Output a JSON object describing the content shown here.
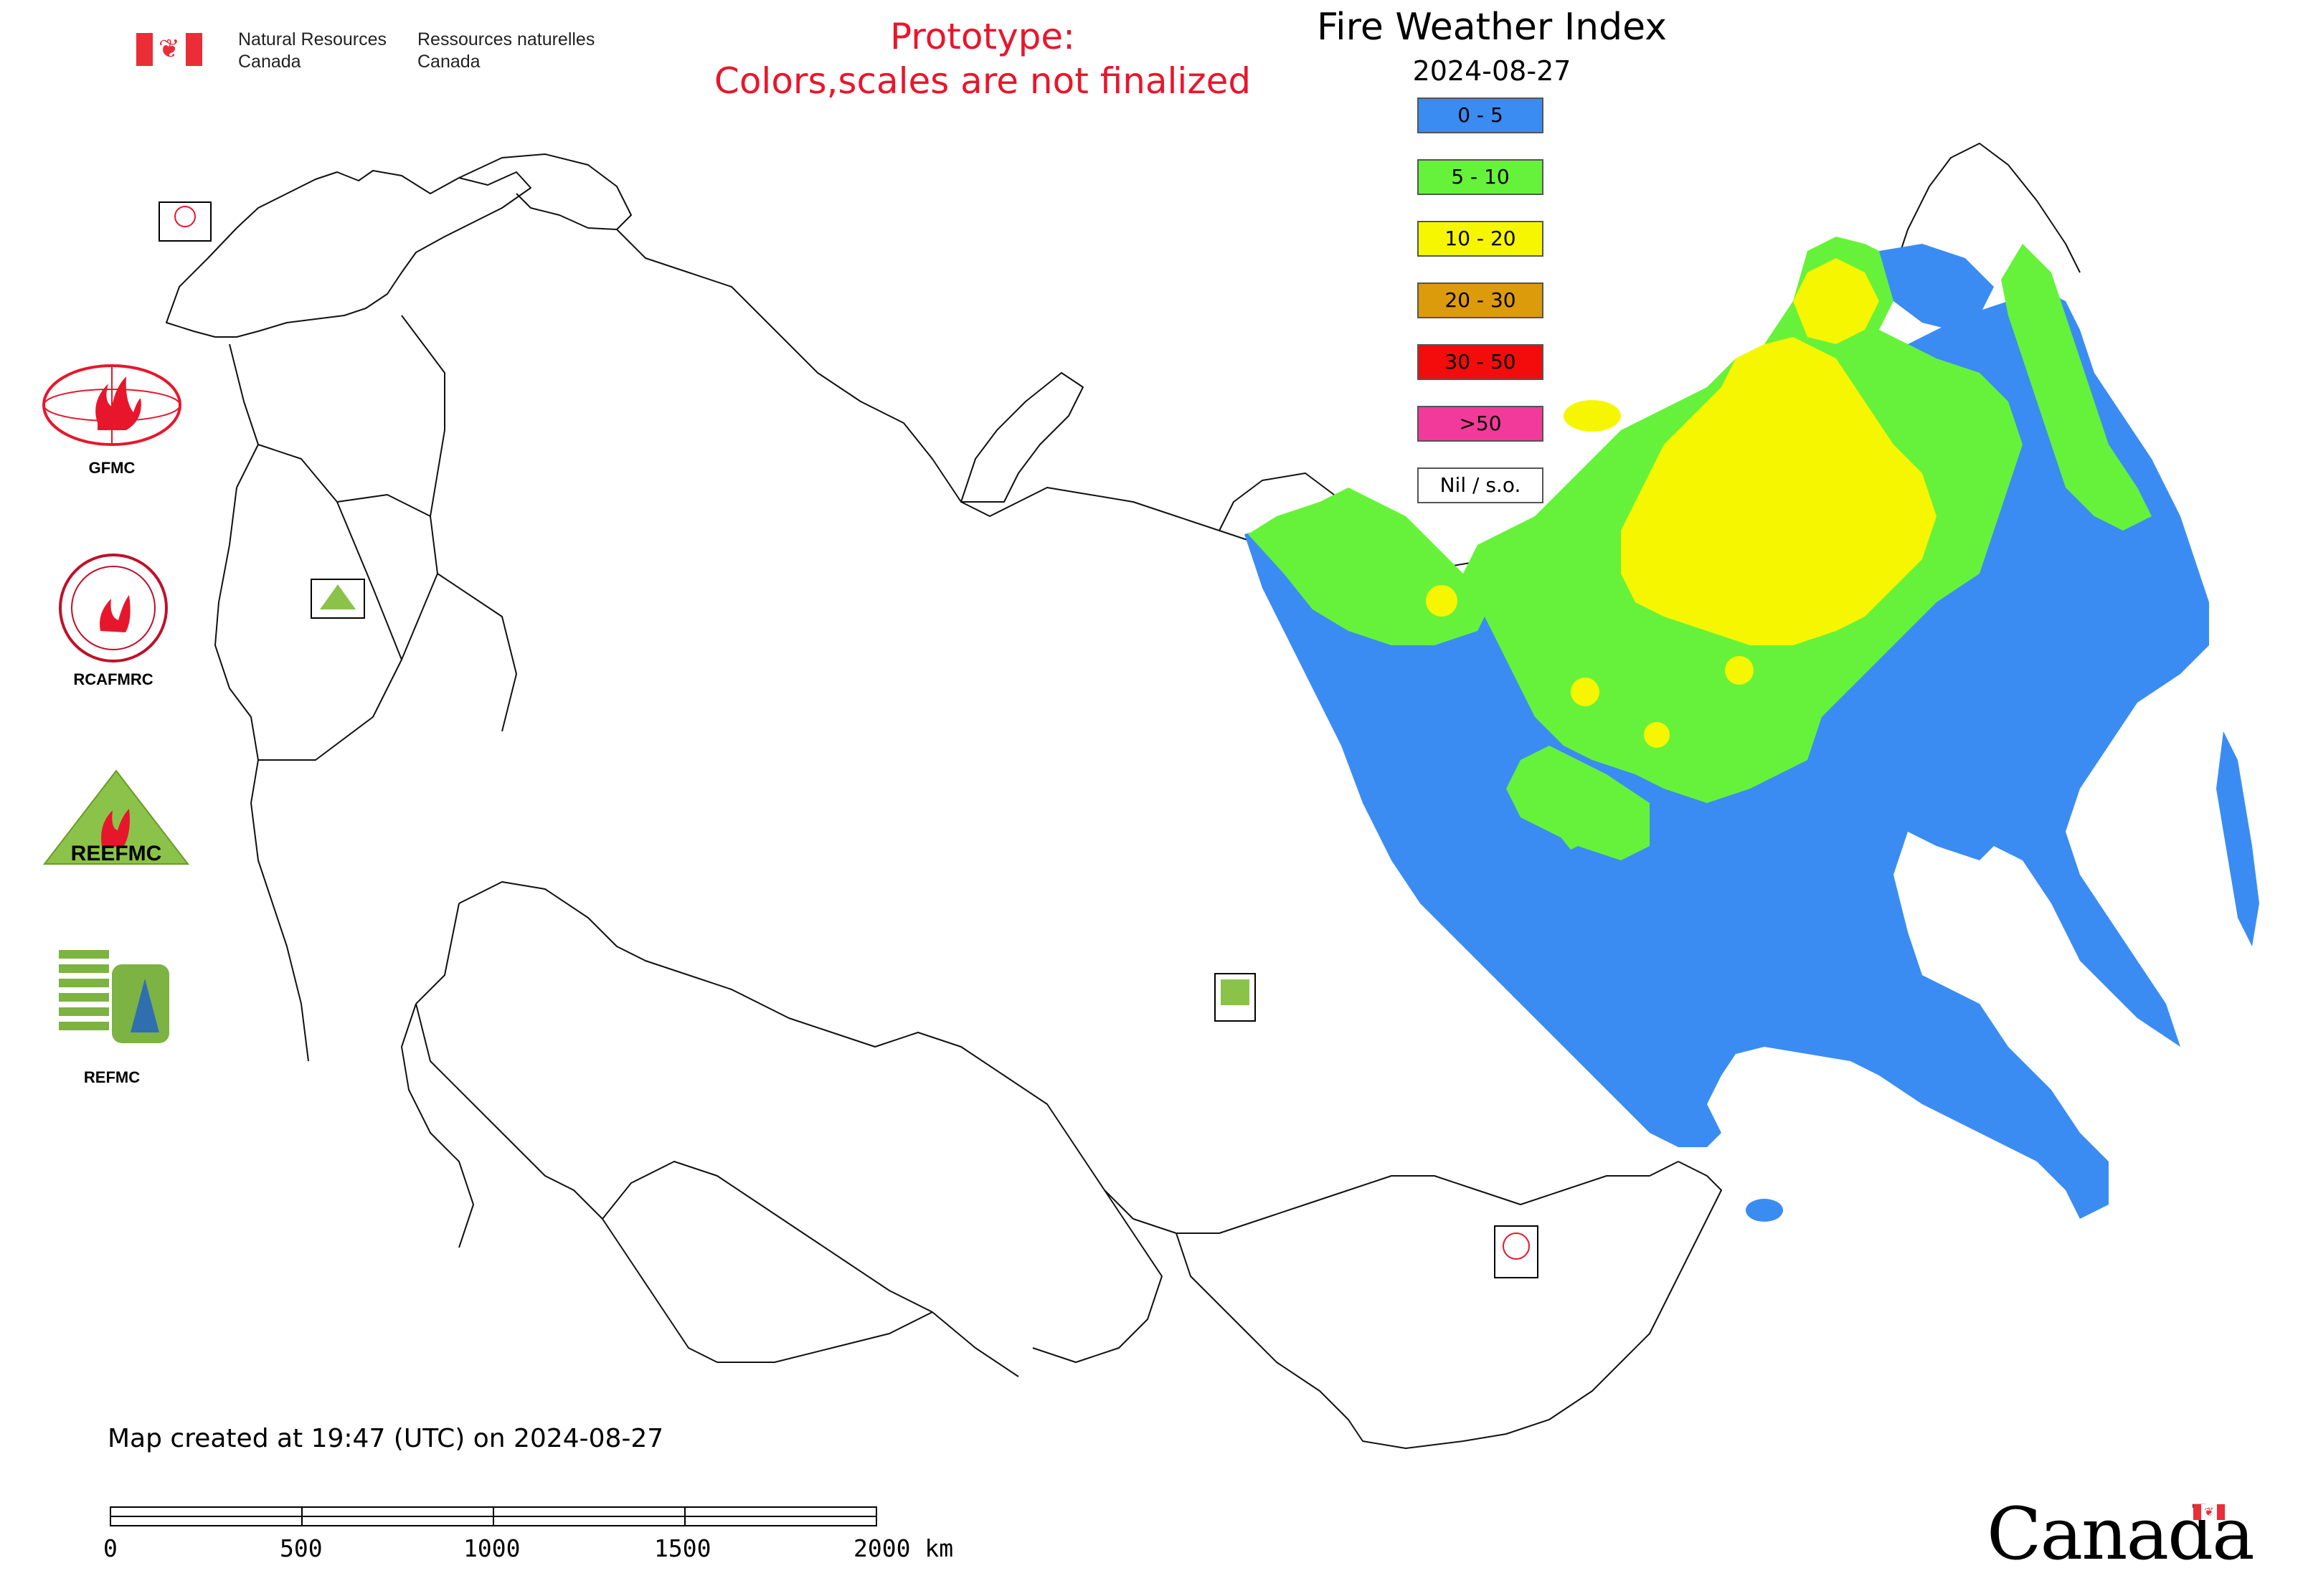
{
  "header": {
    "agency_en_line1": "Natural Resources",
    "agency_en_line2": "Canada",
    "agency_fr_line1": "Ressources naturelles",
    "agency_fr_line2": "Canada",
    "prototype_line1": "Prototype:",
    "prototype_line2": "Colors,scales are not finalized"
  },
  "map": {
    "title": "Fire Weather Index",
    "date": "2024-08-27"
  },
  "legend": {
    "items": [
      {
        "label": "0 - 5",
        "color": "#3a8cf2"
      },
      {
        "label": "5 - 10",
        "color": "#66f23a"
      },
      {
        "label": "10 - 20",
        "color": "#f6f600"
      },
      {
        "label": "20 - 30",
        "color": "#dc9b0a"
      },
      {
        "label": "30 - 50",
        "color": "#f20c0c"
      },
      {
        "label": ">50",
        "color": "#f23a9a"
      },
      {
        "label": "Nil / s.o.",
        "color": "#ffffff"
      }
    ]
  },
  "logos": {
    "gfmc": "GFMC",
    "rcafmrc": "RCAFMRC",
    "reefmc": "REEFMC",
    "refmc": "REFMC",
    "rcafmrc_badge": "RCAFMRC",
    "reefmc_badge": "REEFMC"
  },
  "footer": {
    "created_note": "Map created at 19:47 (UTC) on 2024-08-27",
    "scale_labels": [
      "0",
      "500",
      "1000",
      "1500",
      "2000 km"
    ],
    "wordmark": "Canada"
  }
}
